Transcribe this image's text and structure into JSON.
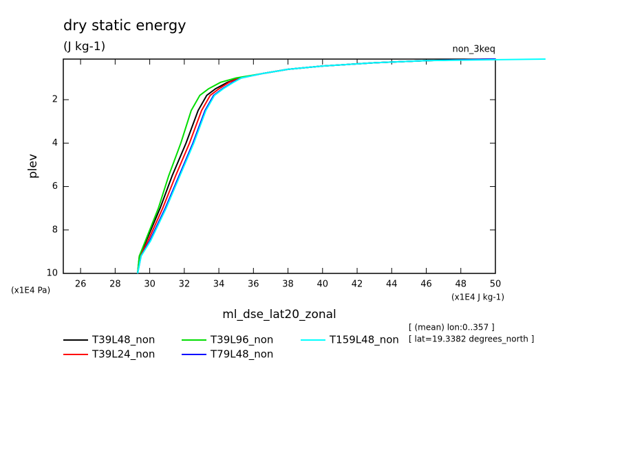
{
  "chart_data": {
    "type": "line",
    "title": "dry static energy",
    "subtitle": "(J kg-1)",
    "corner_label": "non_3keq",
    "y_label": "plev",
    "y_unit": "(x1E4 Pa)",
    "x_unit": "(x1E4 J kg-1)",
    "x_label": "ml_dse_lat20_zonal",
    "info": [
      "[ (mean) lon:0..357 ]",
      "[ lat=19.3382 degrees_north ]"
    ],
    "y": [
      10,
      9.2,
      8.5,
      7,
      5.5,
      4,
      2.5,
      1.8,
      1.5,
      1.2,
      1.0,
      0.8,
      0.6,
      0.45,
      0.3,
      0.2,
      0.13
    ],
    "series": [
      {
        "name": "T39L48_non",
        "color": "#000000",
        "values": [
          29.3,
          29.4,
          29.8,
          30.6,
          31.3,
          32.1,
          32.8,
          33.3,
          33.8,
          34.5,
          35.2,
          36.5,
          38,
          40,
          43,
          46,
          50
        ]
      },
      {
        "name": "T39L24_non",
        "color": "#ff0000",
        "values": [
          29.3,
          29.45,
          29.9,
          30.75,
          31.5,
          32.3,
          33.0,
          33.5,
          34.0,
          34.6,
          35.2,
          36.5,
          38,
          40,
          43,
          46,
          50
        ]
      },
      {
        "name": "T39L96_non",
        "color": "#00dd00",
        "values": [
          29.3,
          29.4,
          29.75,
          30.5,
          31.1,
          31.8,
          32.4,
          32.9,
          33.4,
          34.1,
          35.0,
          36.5,
          38,
          40,
          43,
          46,
          50
        ]
      },
      {
        "name": "T79L48_non",
        "color": "#0000ff",
        "values": [
          29.3,
          29.5,
          30.0,
          30.9,
          31.7,
          32.5,
          33.2,
          33.7,
          34.2,
          34.8,
          35.3,
          36.5,
          38,
          40,
          43,
          46,
          50
        ]
      },
      {
        "name": "T159L48_non",
        "color": "#00ffff",
        "values": [
          29.3,
          29.5,
          30.05,
          30.95,
          31.75,
          32.55,
          33.25,
          33.75,
          34.25,
          34.85,
          35.3,
          36.5,
          38,
          40,
          43,
          46,
          52.9
        ]
      }
    ],
    "xlim": [
      25,
      50
    ],
    "ylim": [
      10,
      0.13
    ],
    "xticks": [
      26,
      28,
      30,
      32,
      34,
      36,
      38,
      40,
      42,
      44,
      46,
      48,
      50
    ],
    "yticks": [
      2,
      4,
      6,
      8,
      10
    ]
  }
}
